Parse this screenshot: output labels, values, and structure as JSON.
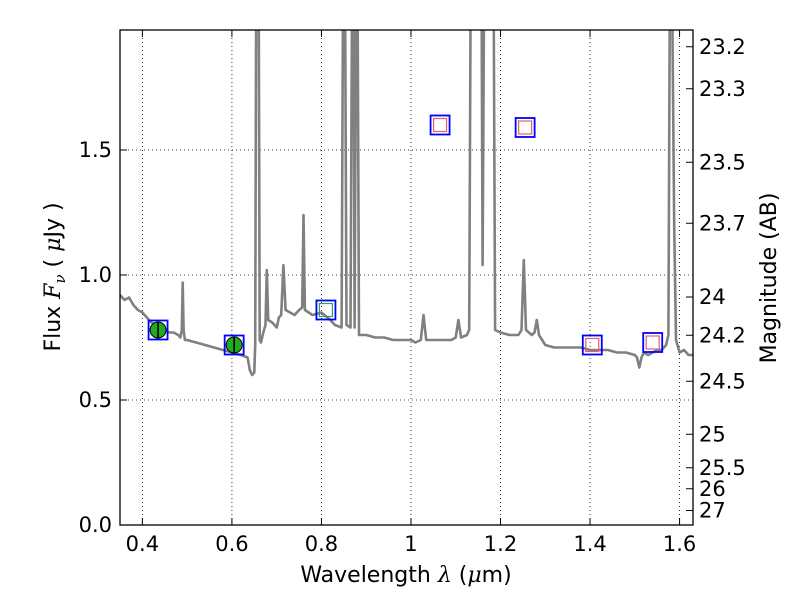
{
  "chart_data": {
    "type": "line",
    "xlabel_parts": [
      "Wavelength  ",
      "λ",
      " (",
      "μ",
      "m)"
    ],
    "ylabel_parts": [
      "Flux  ",
      "F",
      "ν",
      "  ( ",
      "μ",
      "Jy )"
    ],
    "y2label": "Magnitude (AB)",
    "xlim": [
      0.35,
      1.63
    ],
    "ylim": [
      0.0,
      1.98
    ],
    "grid": true,
    "x_ticks": [
      0.4,
      0.6,
      0.8,
      1.0,
      1.2,
      1.4,
      1.6
    ],
    "x_tick_labels": [
      "0.4",
      "0.6",
      "0.8",
      "1",
      "1.2",
      "1.4",
      "1.6"
    ],
    "y_ticks": [
      0.0,
      0.5,
      1.0,
      1.5
    ],
    "y_tick_labels": [
      "0.0",
      "0.5",
      "1.0",
      "1.5"
    ],
    "mag_ticks": [
      {
        "label": "23.2",
        "flux": 1.913
      },
      {
        "label": "23.3",
        "flux": 1.745
      },
      {
        "label": "23.5",
        "flux": 1.451
      },
      {
        "label": "23.7",
        "flux": 1.207
      },
      {
        "label": "24",
        "flux": 0.912
      },
      {
        "label": "24.2",
        "flux": 0.759
      },
      {
        "label": "24.5",
        "flux": 0.575
      },
      {
        "label": "25",
        "flux": 0.363
      },
      {
        "label": "25.5",
        "flux": 0.229
      },
      {
        "label": "26",
        "flux": 0.145
      },
      {
        "label": "27",
        "flux": 0.058
      }
    ],
    "series": [
      {
        "kind": "spectrum",
        "color": "#808080",
        "points": [
          [
            0.35,
            0.92
          ],
          [
            0.36,
            0.9
          ],
          [
            0.37,
            0.91
          ],
          [
            0.38,
            0.88
          ],
          [
            0.39,
            0.86
          ],
          [
            0.4,
            0.85
          ],
          [
            0.41,
            0.83
          ],
          [
            0.42,
            0.81
          ],
          [
            0.43,
            0.8
          ],
          [
            0.44,
            0.79
          ],
          [
            0.45,
            0.78
          ],
          [
            0.46,
            0.77
          ],
          [
            0.47,
            0.77
          ],
          [
            0.48,
            0.76
          ],
          [
            0.485,
            0.75
          ],
          [
            0.488,
            0.78
          ],
          [
            0.49,
            0.97
          ],
          [
            0.492,
            0.78
          ],
          [
            0.495,
            0.74
          ],
          [
            0.5,
            0.74
          ],
          [
            0.52,
            0.73
          ],
          [
            0.54,
            0.72
          ],
          [
            0.56,
            0.71
          ],
          [
            0.58,
            0.7
          ],
          [
            0.6,
            0.69
          ],
          [
            0.62,
            0.68
          ],
          [
            0.635,
            0.67
          ],
          [
            0.64,
            0.62
          ],
          [
            0.645,
            0.6
          ],
          [
            0.65,
            0.61
          ],
          [
            0.652,
            0.72
          ],
          [
            0.654,
            2.0
          ],
          [
            0.66,
            2.0
          ],
          [
            0.662,
            0.74
          ],
          [
            0.665,
            0.73
          ],
          [
            0.67,
            0.77
          ],
          [
            0.675,
            0.8
          ],
          [
            0.678,
            1.02
          ],
          [
            0.681,
            0.82
          ],
          [
            0.69,
            0.81
          ],
          [
            0.7,
            0.79
          ],
          [
            0.705,
            0.83
          ],
          [
            0.71,
            0.84
          ],
          [
            0.715,
            1.04
          ],
          [
            0.72,
            0.86
          ],
          [
            0.73,
            0.85
          ],
          [
            0.74,
            0.84
          ],
          [
            0.75,
            0.86
          ],
          [
            0.757,
            0.87
          ],
          [
            0.76,
            1.24
          ],
          [
            0.763,
            0.86
          ],
          [
            0.78,
            0.84
          ],
          [
            0.8,
            0.85
          ],
          [
            0.82,
            0.82
          ],
          [
            0.83,
            0.8
          ],
          [
            0.845,
            0.79
          ],
          [
            0.848,
            2.0
          ],
          [
            0.853,
            2.0
          ],
          [
            0.856,
            0.8
          ],
          [
            0.865,
            0.79
          ],
          [
            0.868,
            2.0
          ],
          [
            0.872,
            2.0
          ],
          [
            0.874,
            0.79
          ],
          [
            0.877,
            2.0
          ],
          [
            0.881,
            2.0
          ],
          [
            0.884,
            0.76
          ],
          [
            0.9,
            0.76
          ],
          [
            0.92,
            0.75
          ],
          [
            0.94,
            0.75
          ],
          [
            0.96,
            0.74
          ],
          [
            0.98,
            0.74
          ],
          [
            1.0,
            0.74
          ],
          [
            1.01,
            0.73
          ],
          [
            1.022,
            0.74
          ],
          [
            1.028,
            0.84
          ],
          [
            1.034,
            0.74
          ],
          [
            1.06,
            0.74
          ],
          [
            1.09,
            0.74
          ],
          [
            1.1,
            0.75
          ],
          [
            1.106,
            0.82
          ],
          [
            1.112,
            0.75
          ],
          [
            1.125,
            0.76
          ],
          [
            1.13,
            0.78
          ],
          [
            1.133,
            2.0
          ],
          [
            1.158,
            2.0
          ],
          [
            1.16,
            1.04
          ],
          [
            1.163,
            2.0
          ],
          [
            1.185,
            2.0
          ],
          [
            1.188,
            0.78
          ],
          [
            1.2,
            0.77
          ],
          [
            1.22,
            0.76
          ],
          [
            1.24,
            0.76
          ],
          [
            1.247,
            0.78
          ],
          [
            1.252,
            1.06
          ],
          [
            1.257,
            0.78
          ],
          [
            1.27,
            0.76
          ],
          [
            1.276,
            0.77
          ],
          [
            1.281,
            0.82
          ],
          [
            1.286,
            0.76
          ],
          [
            1.3,
            0.72
          ],
          [
            1.32,
            0.71
          ],
          [
            1.34,
            0.71
          ],
          [
            1.36,
            0.71
          ],
          [
            1.38,
            0.71
          ],
          [
            1.4,
            0.7
          ],
          [
            1.42,
            0.7
          ],
          [
            1.44,
            0.7
          ],
          [
            1.46,
            0.69
          ],
          [
            1.48,
            0.69
          ],
          [
            1.5,
            0.68
          ],
          [
            1.505,
            0.67
          ],
          [
            1.51,
            0.63
          ],
          [
            1.515,
            0.67
          ],
          [
            1.52,
            0.69
          ],
          [
            1.53,
            0.68
          ],
          [
            1.54,
            0.69
          ],
          [
            1.55,
            0.7
          ],
          [
            1.56,
            0.7
          ],
          [
            1.57,
            0.72
          ],
          [
            1.575,
            0.76
          ],
          [
            1.578,
            2.0
          ],
          [
            1.584,
            2.0
          ],
          [
            1.588,
            1.2
          ],
          [
            1.592,
            0.74
          ],
          [
            1.6,
            0.69
          ],
          [
            1.61,
            0.7
          ],
          [
            1.62,
            0.68
          ],
          [
            1.63,
            0.68
          ]
        ]
      },
      {
        "kind": "photometry",
        "marker": "circle",
        "color": "#22aa22",
        "points": [
          {
            "x": 0.435,
            "y": 0.78,
            "yerr": 0.03
          },
          {
            "x": 0.605,
            "y": 0.72,
            "yerr": 0.03
          }
        ]
      },
      {
        "kind": "model",
        "marker": "square",
        "color": "#0000ff",
        "points": [
          [
            0.435,
            0.78
          ],
          [
            0.605,
            0.72
          ],
          [
            0.81,
            0.86
          ],
          [
            1.065,
            1.6
          ],
          [
            1.255,
            1.59
          ],
          [
            1.405,
            0.72
          ],
          [
            1.54,
            0.73
          ]
        ]
      },
      {
        "kind": "model-points",
        "marker": "square",
        "color": "#e06070",
        "points": [
          [
            1.065,
            1.6
          ],
          [
            1.255,
            1.59
          ],
          [
            1.405,
            0.72
          ],
          [
            1.54,
            0.73
          ]
        ]
      },
      {
        "kind": "model-points",
        "marker": "square",
        "color": "#3aa050",
        "points": [
          [
            0.81,
            0.86
          ]
        ]
      }
    ]
  }
}
